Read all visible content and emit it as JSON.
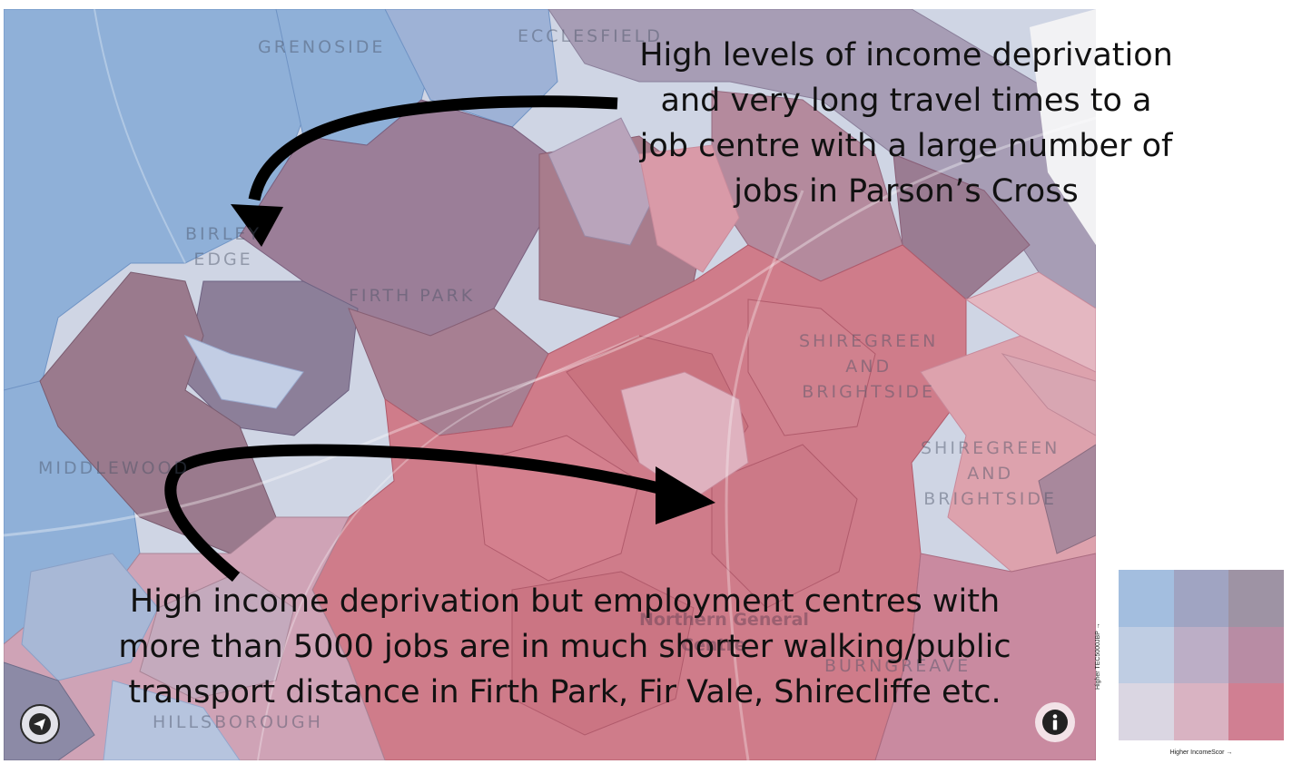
{
  "map": {
    "place_labels": [
      {
        "id": "grenoside",
        "text": "GRENOSIDE"
      },
      {
        "id": "ecclesfield",
        "text": "ECCLESFIELD"
      },
      {
        "id": "birley-edge",
        "text": "BIRLEY\nEDGE"
      },
      {
        "id": "firth-park",
        "text": "FIRTH PARK"
      },
      {
        "id": "shiregreen-1",
        "text": "SHIREGREEN\nAND\nBRIGHTSIDE"
      },
      {
        "id": "shiregreen-2",
        "text": "SHIREGREEN\nAND\nBRIGHTSIDE"
      },
      {
        "id": "middlewood",
        "text": "MIDDLEWOOD"
      },
      {
        "id": "hillsborough",
        "text": "HILLSBOROUGH"
      },
      {
        "id": "burngreave",
        "text": "BURNGREAVE"
      },
      {
        "id": "poi-hospital",
        "text": "Northern General"
      },
      {
        "id": "poi-hospital-2",
        "text": "Centre"
      }
    ],
    "colors": {
      "blue": "#8fb0d8",
      "light_blue": "#b8c8e2",
      "purple_grey": "#9a8ea6",
      "mauve": "#a77f92",
      "red": "#cf7c8a",
      "pink": "#dda2ad",
      "pale_pink": "#e2c6d0"
    }
  },
  "annotations": {
    "top": "High levels of income deprivation\nand very long travel times to a\njob centre with a large number of\njobs in Parson’s Cross",
    "bottom": "High income deprivation but employment centres with\nmore than 5000 jobs are in much shorter walking/public\ntransport distance in Firth Park, Fir Vale, Shirecliffe etc."
  },
  "controls": {
    "geolocate_icon": "geolocate-icon",
    "info_icon": "info-icon"
  },
  "legend": {
    "cells": [
      "#a3bedf",
      "#a0a4c2",
      "#9e93a4",
      "#bfcde3",
      "#bcaec6",
      "#b88ca4",
      "#dad6e2",
      "#d9b3c2",
      "#d07f92"
    ],
    "x_label": "Higher IncomeScor →",
    "y_label": "Higher TEC5000JBP →"
  }
}
